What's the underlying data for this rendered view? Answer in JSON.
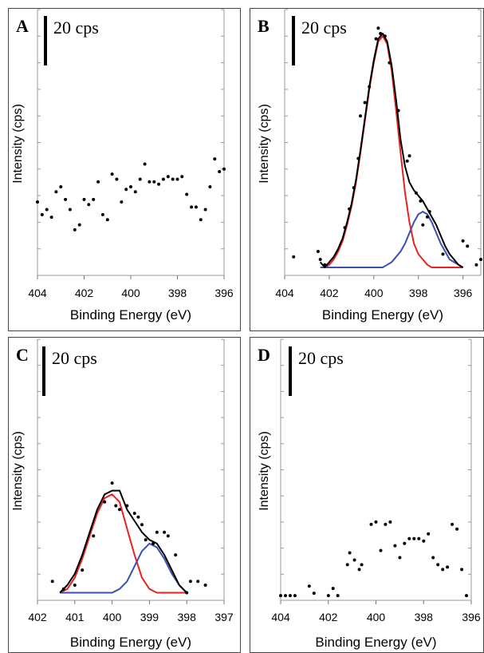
{
  "chart_data": [
    {
      "type": "scatter",
      "panel": "A",
      "scale_bar": "20 cps",
      "xlabel": "Binding Energy (eV)",
      "ylabel": "Intensity (cps)",
      "xlim": [
        404,
        396
      ],
      "xticks": [
        "404",
        "402",
        "400",
        "398",
        "396"
      ],
      "ylim": [
        -12,
        93
      ],
      "colors": {
        "points": "#000000"
      },
      "points": {
        "x": [
          404.0,
          403.8,
          403.6,
          403.4,
          403.2,
          403.0,
          402.8,
          402.6,
          402.4,
          402.2,
          402.0,
          401.8,
          401.6,
          401.4,
          401.2,
          401.0,
          400.8,
          400.6,
          400.4,
          400.2,
          400.0,
          399.8,
          399.6,
          399.4,
          399.2,
          399.0,
          398.8,
          398.6,
          398.4,
          398.2,
          398.0,
          397.8,
          397.6,
          397.4,
          397.2,
          397.0,
          396.8,
          396.6,
          396.4,
          396.2,
          396.0
        ],
        "y": [
          17,
          12,
          14,
          11,
          21,
          23,
          18,
          14,
          6,
          8,
          18,
          16,
          18,
          25,
          12,
          10,
          28,
          26,
          17,
          22,
          23,
          21,
          26,
          32,
          25,
          25,
          24,
          26,
          27,
          26,
          26,
          27,
          20,
          15,
          15,
          10,
          14,
          23,
          34,
          29,
          30
        ]
      }
    },
    {
      "type": "line",
      "panel": "B",
      "scale_bar": "20 cps",
      "xlabel": "Binding Energy (eV)",
      "ylabel": "Intensity (cps)",
      "xlim": [
        404,
        395.2
      ],
      "xticks": [
        "404",
        "402",
        "400",
        "398",
        "396"
      ],
      "ylim": [
        -3,
        97
      ],
      "colors": {
        "envelope": "#000000",
        "component_1": "#e8221e",
        "component_2": "#3a4fb3",
        "points": "#000000"
      },
      "points": {
        "x": [
          403.6,
          402.5,
          402.4,
          402.2,
          401.3,
          401.1,
          400.9,
          400.7,
          400.6,
          400.4,
          400.2,
          399.9,
          399.8,
          399.7,
          399.5,
          399.3,
          398.9,
          398.5,
          398.4,
          398.1,
          397.9,
          397.8,
          397.6,
          397.5,
          396.9,
          396.0,
          395.8,
          395.4,
          395.2
        ],
        "y": [
          4,
          6,
          3,
          1,
          15,
          22,
          30,
          41,
          57,
          62,
          68,
          86,
          90,
          88,
          87,
          77,
          59,
          40,
          42,
          28,
          25,
          16,
          19,
          21,
          5,
          10,
          8,
          1,
          3
        ]
      },
      "lines": {
        "x": [
          402.4,
          402.2,
          402.0,
          401.8,
          401.6,
          401.4,
          401.2,
          401.0,
          400.8,
          400.6,
          400.4,
          400.2,
          400.0,
          399.8,
          399.6,
          399.4,
          399.2,
          399.0,
          398.8,
          398.6,
          398.4,
          398.2,
          398.0,
          397.8,
          397.6,
          397.4,
          397.2,
          397.0,
          396.8,
          396.6,
          396.4,
          396.2,
          396.0
        ],
        "envelope": [
          2,
          0,
          2,
          4,
          7,
          11,
          17,
          24,
          33,
          44,
          56,
          68,
          78,
          86,
          88,
          85,
          76,
          63,
          48,
          38,
          32,
          29,
          27,
          25,
          22,
          19,
          16,
          12,
          8,
          5,
          3,
          1,
          0
        ],
        "component_1": [
          2,
          0,
          1,
          3,
          6,
          10,
          16,
          23,
          32,
          43,
          55,
          67,
          77,
          85,
          87,
          84,
          74,
          59,
          43,
          28,
          17,
          9,
          5,
          3,
          1,
          0,
          0,
          0,
          0,
          0,
          0,
          0,
          0
        ],
        "component_2": [
          0,
          0,
          0,
          0,
          0,
          0,
          0,
          0,
          0,
          0,
          0,
          0,
          0,
          0,
          0,
          1,
          2,
          4,
          6,
          9,
          13,
          17,
          20,
          21,
          20,
          17,
          13,
          9,
          6,
          3,
          2,
          1,
          0
        ]
      }
    },
    {
      "type": "line",
      "panel": "C",
      "scale_bar": "20 cps",
      "xlabel": "Binding Energy (eV)",
      "ylabel": "Intensity (cps)",
      "xlim": [
        402,
        397
      ],
      "xticks": [
        "402",
        "401",
        "400",
        "399",
        "398",
        "397"
      ],
      "ylim": [
        -2,
        67
      ],
      "colors": {
        "envelope": "#000000",
        "component_1": "#e8221e",
        "component_2": "#3a4fb3",
        "points": "#000000"
      },
      "points": {
        "x": [
          401.6,
          401.3,
          401.0,
          400.8,
          400.5,
          400.2,
          400.0,
          399.9,
          399.8,
          399.6,
          399.4,
          399.3,
          399.2,
          399.1,
          398.9,
          398.8,
          398.6,
          398.5,
          398.3,
          398.0,
          397.9,
          397.7,
          397.5
        ],
        "y": [
          3,
          1,
          2,
          6,
          15,
          24,
          29,
          23,
          22,
          23,
          21,
          20,
          18,
          14,
          13,
          16,
          16,
          15,
          10,
          0,
          3,
          3,
          2
        ],
        "y_note": ""
      },
      "lines": {
        "x": [
          401.4,
          401.2,
          401.0,
          400.8,
          400.6,
          400.4,
          400.2,
          400.0,
          399.8,
          399.6,
          399.4,
          399.2,
          399.0,
          398.8,
          398.6,
          398.4,
          398.2,
          398.0
        ],
        "envelope": [
          0,
          2,
          5,
          10,
          16,
          22,
          26,
          27,
          27,
          22,
          19,
          16,
          14,
          13,
          10,
          6,
          2,
          0
        ],
        "component_1": [
          0,
          1,
          4,
          9,
          15,
          21,
          25,
          26,
          24,
          17,
          10,
          4,
          1,
          0,
          0,
          0,
          0,
          0
        ],
        "component_2": [
          0,
          0,
          0,
          0,
          0,
          0,
          0,
          0,
          1,
          3,
          7,
          11,
          13,
          12,
          9,
          5,
          2,
          0
        ]
      }
    },
    {
      "type": "scatter",
      "panel": "D",
      "scale_bar": "20 cps",
      "xlabel": "Binding Energy (eV)",
      "ylabel": "Intensity (cps)",
      "xlim": [
        404,
        396
      ],
      "xticks": [
        "404",
        "402",
        "400",
        "398",
        "396"
      ],
      "ylim": [
        -2,
        108
      ],
      "colors": {
        "points": "#000000"
      },
      "points": {
        "x": [
          404.0,
          403.8,
          403.6,
          403.4,
          402.8,
          402.6,
          402.0,
          401.8,
          401.6,
          401.2,
          401.1,
          400.9,
          400.7,
          400.6,
          400.2,
          400.0,
          399.8,
          399.6,
          399.4,
          399.2,
          399.0,
          398.8,
          398.6,
          398.4,
          398.2,
          398.0,
          397.8,
          397.6,
          397.4,
          397.2,
          397.0,
          396.8,
          396.6,
          396.4,
          396.2
        ],
        "y": [
          0,
          0,
          0,
          0,
          4,
          1,
          0,
          3,
          0,
          13,
          18,
          15,
          11,
          13,
          30,
          31,
          19,
          30,
          31,
          21,
          16,
          22,
          24,
          24,
          24,
          23,
          26,
          16,
          13,
          11,
          12,
          30,
          28,
          11,
          0
        ]
      }
    }
  ]
}
